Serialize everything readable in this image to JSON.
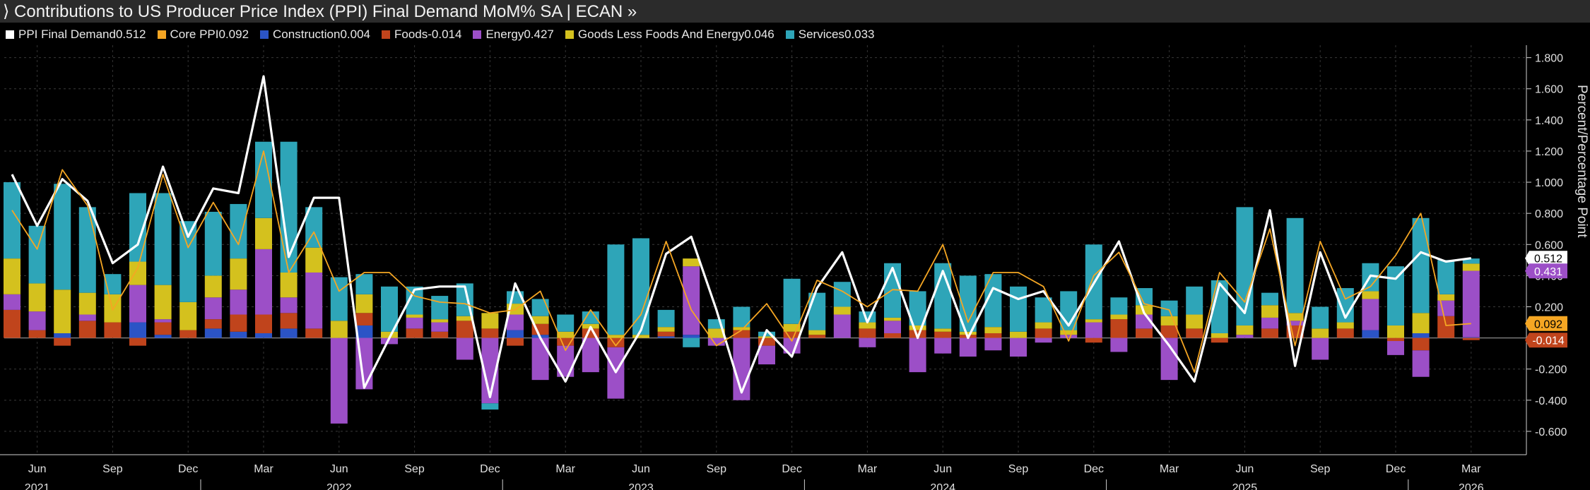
{
  "header": {
    "title": "⟩ Contributions to US Producer Price Index (PPI) Final Demand MoM% SA | ECAN »"
  },
  "legend": [
    {
      "label": "PPI Final Demand",
      "value": "0.512",
      "color": "#ffffff"
    },
    {
      "label": "Core PPI",
      "value": "0.092",
      "color": "#f5a623"
    },
    {
      "label": "Construction",
      "value": "0.004",
      "color": "#2b54c6"
    },
    {
      "label": "Foods",
      "value": "-0.014",
      "color": "#c0441c"
    },
    {
      "label": "Energy",
      "value": "0.427",
      "color": "#9c4fc7"
    },
    {
      "label": "Goods Less Foods And Energy",
      "value": "0.046",
      "color": "#d4c11e"
    },
    {
      "label": "Services",
      "value": "0.033",
      "color": "#2ea5b8"
    }
  ],
  "chart_data": {
    "type": "bar",
    "stacked": true,
    "ylabel": "Percent/Percentage Point",
    "ylim": [
      -0.75,
      1.88
    ],
    "yticks": [
      1.8,
      1.6,
      1.4,
      1.2,
      1.0,
      0.8,
      0.6,
      0.4,
      0.2,
      0,
      -0.2,
      -0.4,
      -0.6
    ],
    "ytick_labels": [
      "1.800",
      "1.600",
      "1.400",
      "1.200",
      "1.000",
      "0.800",
      "0.600",
      "0.400",
      "0.200",
      "",
      "-0.200",
      "-0.400",
      "-0.600"
    ],
    "grid": true,
    "legend_position": "top",
    "x": [
      "2021-05",
      "2021-06",
      "2021-07",
      "2021-08",
      "2021-09",
      "2021-10",
      "2021-11",
      "2021-12",
      "2022-01",
      "2022-02",
      "2022-03",
      "2022-04",
      "2022-05",
      "2022-06",
      "2022-07",
      "2022-08",
      "2022-09",
      "2022-10",
      "2022-11",
      "2022-12",
      "2023-01",
      "2023-02",
      "2023-03",
      "2023-04",
      "2023-05",
      "2023-06",
      "2023-07",
      "2023-08",
      "2023-09",
      "2023-10",
      "2023-11",
      "2023-12",
      "2024-01",
      "2024-02",
      "2024-03",
      "2024-04",
      "2024-05",
      "2024-06",
      "2024-07",
      "2024-08",
      "2024-09",
      "2024-10",
      "2024-11",
      "2024-12",
      "2025-01",
      "2025-02",
      "2025-03",
      "2025-04",
      "2025-05",
      "2025-06",
      "2025-07",
      "2025-08",
      "2025-09",
      "2025-10",
      "2025-11",
      "2025-12",
      "2026-01",
      "2026-02",
      "2026-03"
    ],
    "x_tick_labels": [
      {
        "month": "Jun",
        "year": "2021"
      },
      {
        "month": "Sep",
        "year": ""
      },
      {
        "month": "Dec",
        "year": ""
      },
      {
        "month": "Mar",
        "year": ""
      },
      {
        "month": "Jun",
        "year": "2022"
      },
      {
        "month": "Sep",
        "year": ""
      },
      {
        "month": "Dec",
        "year": ""
      },
      {
        "month": "Mar",
        "year": ""
      },
      {
        "month": "Jun",
        "year": "2023"
      },
      {
        "month": "Sep",
        "year": ""
      },
      {
        "month": "Dec",
        "year": ""
      },
      {
        "month": "Mar",
        "year": ""
      },
      {
        "month": "Jun",
        "year": "2024"
      },
      {
        "month": "Sep",
        "year": ""
      },
      {
        "month": "Dec",
        "year": ""
      },
      {
        "month": "Mar",
        "year": ""
      },
      {
        "month": "Jun",
        "year": "2025"
      },
      {
        "month": "Sep",
        "year": ""
      },
      {
        "month": "Dec",
        "year": ""
      },
      {
        "month": "Mar",
        "year": "2026"
      }
    ],
    "series": [
      {
        "name": "Construction",
        "kind": "bar",
        "color": "#2b54c6",
        "values": [
          0,
          0,
          0.03,
          0,
          0,
          0.1,
          0.02,
          0,
          0.06,
          0.04,
          0.03,
          0.06,
          0,
          0,
          0.08,
          0,
          0,
          0,
          0,
          0,
          0.05,
          0.02,
          0,
          0,
          0,
          0,
          0.01,
          0.02,
          0,
          0,
          0,
          0,
          0,
          0,
          0,
          0,
          0,
          0,
          0,
          0,
          0,
          0,
          0,
          0,
          0,
          0,
          0,
          0,
          0,
          0,
          0,
          0,
          0,
          0,
          0.05,
          0,
          0.03,
          0,
          0.004
        ]
      },
      {
        "name": "Foods",
        "kind": "bar",
        "color": "#c0441c",
        "values": [
          0.18,
          0.05,
          -0.05,
          0.11,
          0.1,
          -0.05,
          0.08,
          0.05,
          0.06,
          0.11,
          0.12,
          0.1,
          0.06,
          0,
          0.08,
          0,
          0.06,
          0.04,
          0.11,
          0.06,
          -0.05,
          0.07,
          -0.05,
          0.06,
          -0.06,
          0,
          0.03,
          0,
          0,
          0.05,
          -0.05,
          0.04,
          0.02,
          0,
          0.06,
          0.03,
          0.05,
          0.04,
          0.02,
          0.03,
          0,
          0.06,
          0,
          -0.03,
          0.12,
          0.06,
          0.08,
          0.06,
          -0.03,
          0,
          0.06,
          0.08,
          0,
          0.06,
          0,
          -0.02,
          -0.08,
          0.14,
          -0.014
        ]
      },
      {
        "name": "Energy",
        "kind": "bar",
        "color": "#9c4fc7",
        "values": [
          0.1,
          0.12,
          0,
          0.04,
          0,
          0.24,
          0.02,
          0,
          0.14,
          0.16,
          0.42,
          0.1,
          0.36,
          -0.55,
          -0.33,
          -0.04,
          0.07,
          0.06,
          -0.14,
          -0.42,
          0.1,
          -0.27,
          -0.2,
          -0.22,
          -0.33,
          0,
          0,
          0.44,
          -0.05,
          -0.4,
          -0.12,
          -0.1,
          0,
          0.15,
          -0.06,
          0.08,
          -0.22,
          -0.1,
          -0.12,
          -0.08,
          -0.12,
          -0.03,
          0.02,
          0.1,
          -0.09,
          0.09,
          -0.27,
          0,
          0,
          0.02,
          0.07,
          0.03,
          -0.14,
          0,
          0.2,
          -0.09,
          -0.17,
          0.1,
          0.427
        ]
      },
      {
        "name": "Goods Less Foods And Energy",
        "kind": "bar",
        "color": "#d4c11e",
        "values": [
          0.23,
          0.18,
          0.28,
          0.14,
          0.18,
          0.15,
          0.22,
          0.18,
          0.14,
          0.2,
          0.2,
          0.16,
          0.16,
          0.11,
          0.12,
          0.04,
          0.02,
          0.02,
          0.03,
          0.1,
          0.07,
          0.05,
          0.04,
          0.03,
          0.02,
          0.02,
          0.03,
          0.05,
          0.06,
          0.02,
          0.01,
          0.05,
          0.03,
          0.05,
          0.04,
          0.02,
          0.03,
          0.02,
          0.02,
          0.04,
          0.04,
          0.04,
          0.03,
          0.02,
          0.03,
          0.06,
          0.06,
          0.09,
          0.03,
          0.06,
          0.08,
          0.05,
          0.06,
          0.04,
          0.05,
          0.08,
          0.13,
          0.04,
          0.046
        ]
      },
      {
        "name": "Services",
        "kind": "bar",
        "color": "#2ea5b8",
        "values": [
          0.49,
          0.37,
          0.68,
          0.55,
          0.13,
          0.44,
          0.59,
          0.52,
          0.41,
          0.35,
          0.49,
          0.84,
          0.26,
          0.28,
          0.13,
          0.29,
          0.18,
          0.15,
          0.21,
          -0.04,
          0.08,
          0.11,
          0.11,
          0.08,
          0.58,
          0.62,
          0.11,
          -0.06,
          0.06,
          0.13,
          0.03,
          0.29,
          0.24,
          0.16,
          0.07,
          0.35,
          0.22,
          0.42,
          0.36,
          0.34,
          0.29,
          0.16,
          0.25,
          0.48,
          0.11,
          0.11,
          0.1,
          0.18,
          0.34,
          0.76,
          0.08,
          0.61,
          0.14,
          0.22,
          0.18,
          0.38,
          0.61,
          0.22,
          0.033
        ]
      },
      {
        "name": "PPI Final Demand",
        "kind": "line",
        "color": "#ffffff",
        "values": [
          1.05,
          0.72,
          1.02,
          0.88,
          0.48,
          0.6,
          1.1,
          0.65,
          0.96,
          0.93,
          1.68,
          0.52,
          0.9,
          0.9,
          -0.32,
          0.0,
          0.31,
          0.33,
          0.33,
          -0.38,
          0.35,
          0.0,
          -0.28,
          0.07,
          -0.22,
          0.05,
          0.54,
          0.65,
          0.18,
          -0.35,
          0.05,
          -0.12,
          0.32,
          0.55,
          0.1,
          0.45,
          0.0,
          0.43,
          0.0,
          0.32,
          0.25,
          0.3,
          0.08,
          0.35,
          0.62,
          0.16,
          -0.05,
          -0.28,
          0.35,
          0.16,
          0.82,
          -0.18,
          0.55,
          0.13,
          0.4,
          0.38,
          0.55,
          0.49,
          0.512
        ]
      },
      {
        "name": "Core PPI",
        "kind": "line",
        "color": "#f5a623",
        "values": [
          0.82,
          0.57,
          1.08,
          0.85,
          0.18,
          0.45,
          1.05,
          0.58,
          0.87,
          0.6,
          1.2,
          0.42,
          0.68,
          0.3,
          0.42,
          0.42,
          0.27,
          0.23,
          0.22,
          0.16,
          0.18,
          0.3,
          -0.08,
          0.18,
          -0.05,
          0.15,
          0.62,
          0.18,
          -0.05,
          0.05,
          0.22,
          -0.02,
          0.37,
          0.3,
          0.2,
          0.31,
          0.3,
          0.6,
          0.1,
          0.42,
          0.42,
          0.33,
          -0.02,
          0.4,
          0.55,
          0.22,
          0.18,
          -0.22,
          0.42,
          0.23,
          0.7,
          -0.05,
          0.62,
          0.25,
          0.33,
          0.53,
          0.8,
          0.08,
          0.092
        ]
      }
    ],
    "end_labels": [
      {
        "value": "0.512",
        "y": 0.512,
        "bg": "#ffffff",
        "fg": "#000000"
      },
      {
        "value": "0.431",
        "y": 0.43,
        "bg": "#9c4fc7",
        "fg": "#ffffff"
      },
      {
        "value": "0.092",
        "y": 0.092,
        "bg": "#f5a623",
        "fg": "#000000"
      },
      {
        "value": "-0.014",
        "y": -0.014,
        "bg": "#c0441c",
        "fg": "#ffffff"
      }
    ]
  }
}
